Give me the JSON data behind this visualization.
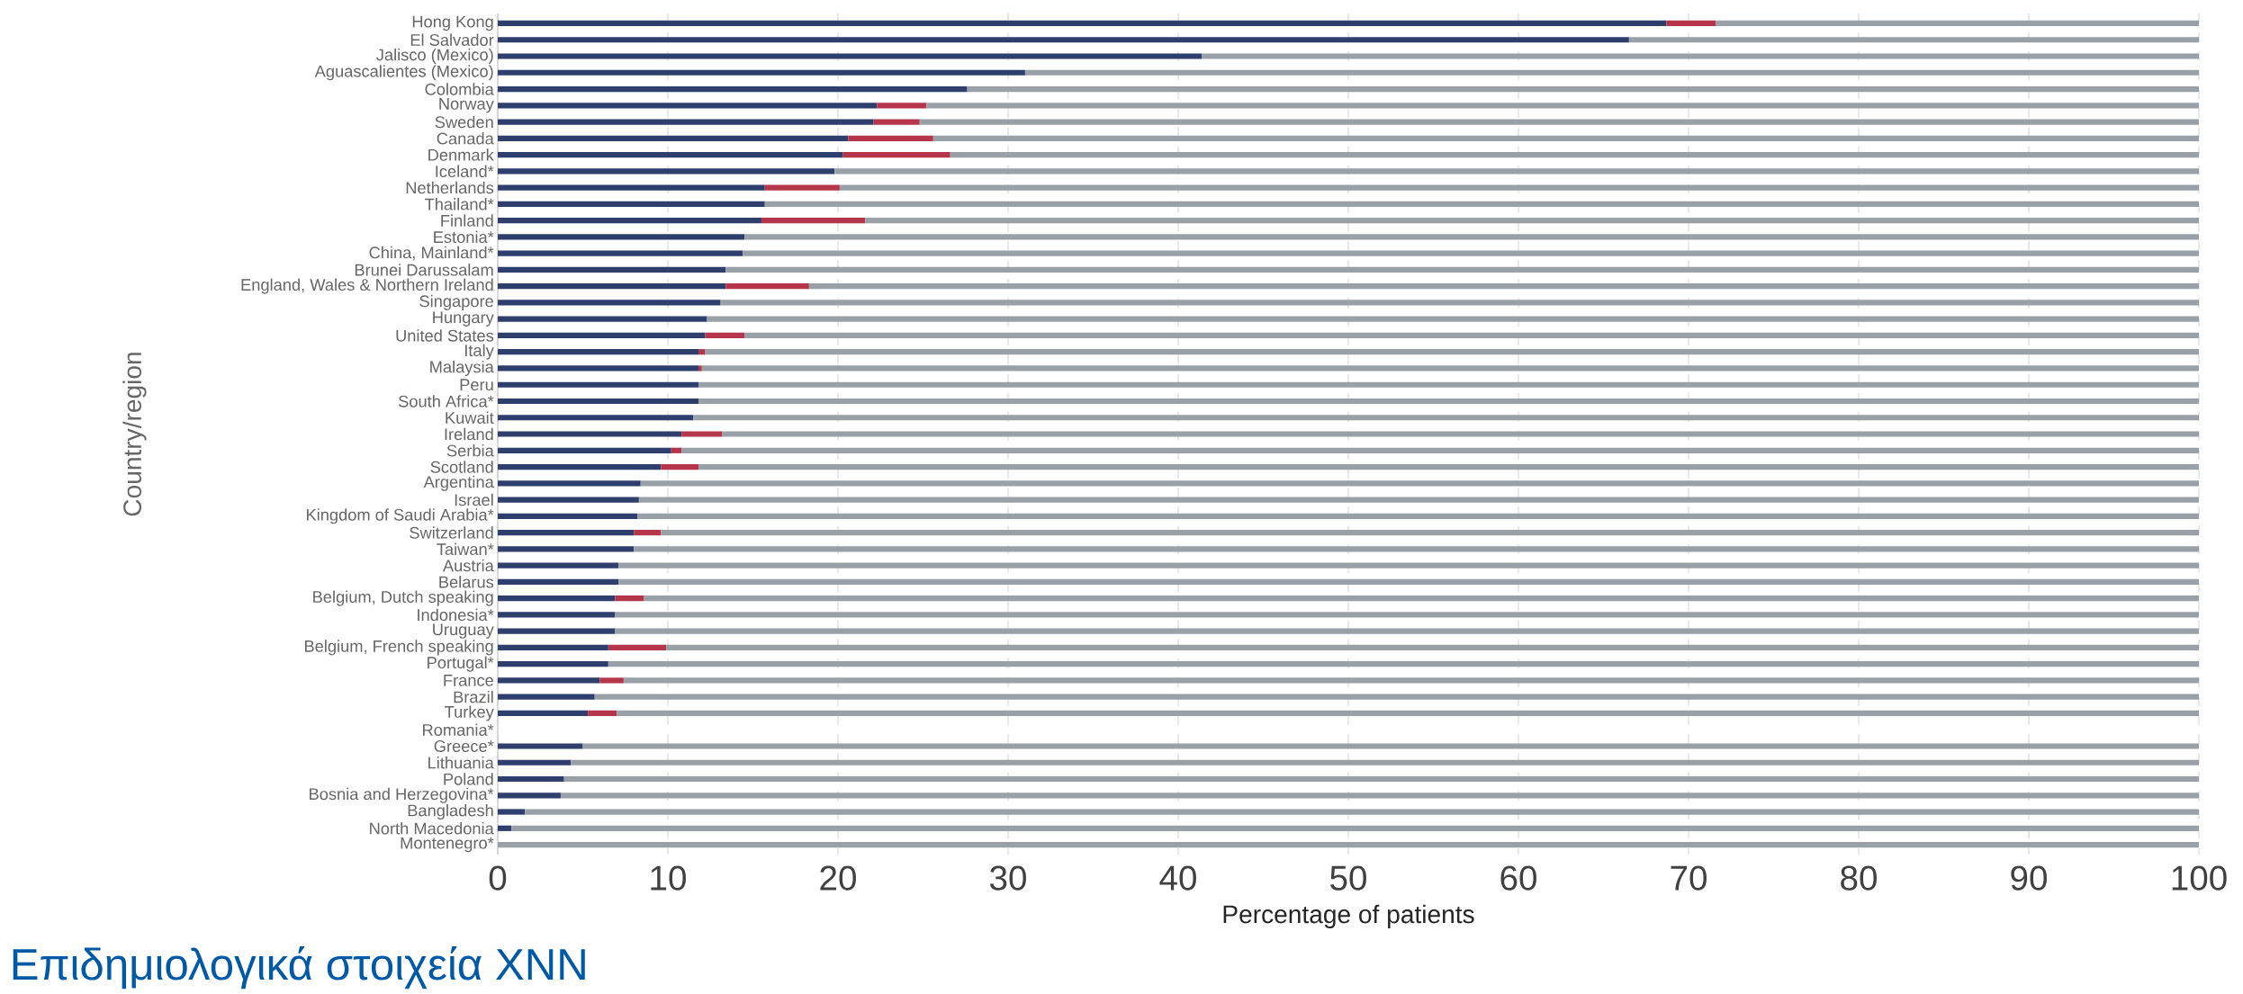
{
  "chart_data": {
    "type": "bar",
    "orientation": "horizontal",
    "stacked": true,
    "title": "Επιδημιολογικά στοιχεία ΧΝΝ",
    "xlabel": "Percentage of patients",
    "ylabel": "Country/region",
    "categories": [
      "Hong Kong",
      "El Salvador",
      "Jalisco (Mexico)",
      "Aguascalientes (Mexico)",
      "Colombia",
      "Norway",
      "Sweden",
      "Canada",
      "Denmark",
      "Iceland*",
      "Netherlands",
      "Thailand*",
      "Finland",
      "Estonia*",
      "China, Mainland*",
      "Brunei Darussalam",
      "England, Wales & Northern Ireland",
      "Singapore",
      "Hungary",
      "United States",
      "Italy",
      "Malaysia",
      "Peru",
      "South Africa*",
      "Kuwait",
      "Ireland",
      "Serbia",
      "Scotland",
      "Argentina",
      "Israel",
      "Kingdom of Saudi Arabia*",
      "Switzerland",
      "Taiwan*",
      "Austria",
      "Belarus",
      "Belgium, Dutch speaking",
      "Indonesia*",
      "Uruguay",
      "Belgium, French speaking",
      "Portugal*",
      "France",
      "Brazil",
      "Turkey",
      "Romania*",
      "Greece*",
      "Lithuania",
      "Poland",
      "Bosnia and Herzegovina*",
      "Bangladesh",
      "North Macedonia",
      "Montenegro*"
    ],
    "series": [
      {
        "color": "#2e3f6e",
        "values": [
          68.7,
          66.5,
          41.4,
          31.0,
          27.6,
          22.3,
          22.1,
          20.6,
          20.3,
          19.8,
          15.7,
          15.7,
          15.5,
          14.5,
          14.4,
          13.4,
          13.4,
          13.1,
          12.3,
          12.2,
          11.8,
          11.8,
          11.8,
          11.8,
          11.5,
          10.8,
          10.2,
          9.6,
          8.4,
          8.3,
          8.2,
          8.0,
          8.0,
          7.1,
          7.1,
          6.9,
          6.9,
          6.9,
          6.5,
          6.5,
          6.0,
          5.7,
          5.3,
          null,
          5.0,
          4.3,
          3.9,
          3.7,
          1.6,
          0.8,
          0
        ]
      },
      {
        "color": "#b5364a",
        "values": [
          2.9,
          null,
          null,
          null,
          null,
          2.9,
          2.7,
          5.0,
          6.3,
          null,
          4.4,
          null,
          6.1,
          null,
          null,
          null,
          4.9,
          null,
          null,
          2.3,
          0.4,
          0.2,
          null,
          null,
          null,
          2.4,
          0.6,
          2.2,
          null,
          null,
          null,
          1.6,
          null,
          null,
          null,
          1.7,
          null,
          null,
          3.4,
          null,
          1.4,
          null,
          1.7,
          null,
          null,
          null,
          null,
          null,
          null,
          null,
          null
        ]
      },
      {
        "color": "#9aa0a8",
        "values": [
          28.4,
          33.5,
          58.6,
          69.0,
          72.4,
          74.8,
          75.2,
          74.4,
          73.4,
          80.2,
          79.9,
          84.3,
          78.4,
          85.5,
          85.6,
          86.6,
          81.7,
          86.9,
          87.7,
          85.5,
          87.8,
          88.0,
          88.2,
          88.2,
          88.5,
          86.8,
          89.2,
          88.2,
          91.6,
          91.7,
          91.8,
          90.4,
          92.0,
          92.9,
          92.9,
          91.4,
          93.1,
          93.1,
          90.1,
          93.5,
          92.6,
          94.3,
          93.0,
          null,
          95.0,
          95.7,
          96.1,
          96.3,
          98.4,
          99.2,
          100
        ]
      }
    ],
    "xlim": [
      0,
      100
    ],
    "xticks": [
      0,
      10,
      20,
      30,
      40,
      50,
      60,
      70,
      80,
      90,
      100
    ],
    "grid": "x"
  }
}
